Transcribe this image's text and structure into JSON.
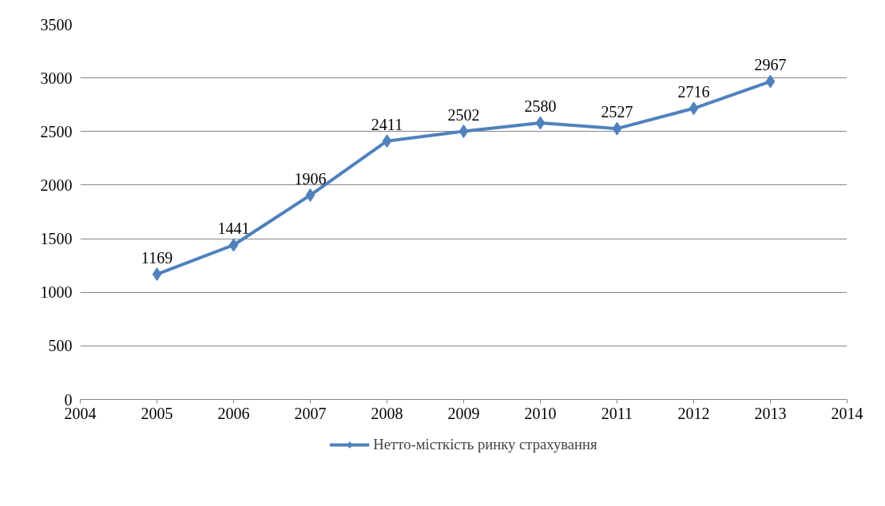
{
  "chart_data": {
    "type": "line",
    "x": [
      2005,
      2006,
      2007,
      2008,
      2009,
      2010,
      2011,
      2012,
      2013
    ],
    "series": [
      {
        "name": "Нетто-місткість ринку страхування",
        "color": "#4f81bd",
        "values": [
          1169,
          1441,
          1906,
          2411,
          2502,
          2580,
          2527,
          2716,
          2967
        ]
      }
    ],
    "xlim": [
      2004,
      2014
    ],
    "xticks": [
      2004,
      2005,
      2006,
      2007,
      2008,
      2009,
      2010,
      2011,
      2012,
      2013,
      2014
    ],
    "ylim": [
      0,
      3500
    ],
    "yticks": [
      0,
      500,
      1000,
      1500,
      2000,
      2500,
      3000,
      3500
    ],
    "grid": "y",
    "legend": "bottom",
    "marker": "diamond",
    "line_style": "solid",
    "data_labels": true
  }
}
